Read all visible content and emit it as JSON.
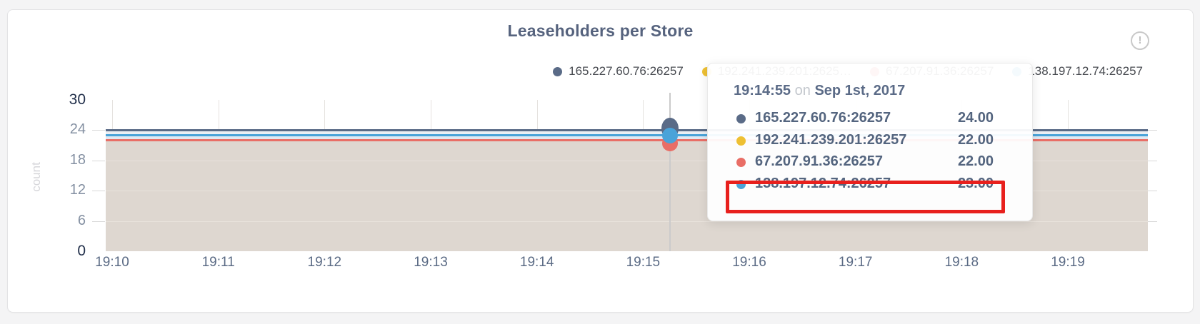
{
  "page": {
    "title": "Leaseholders per Store",
    "info_icon_glyph": "!"
  },
  "legend": {
    "items": [
      {
        "label": "165.227.60.76:26257",
        "color": "#5a6b87"
      },
      {
        "label": "192.241.239.201:2625…",
        "color": "#eec033"
      },
      {
        "label": "67.207.91.36:26257",
        "color": "#e96e66"
      },
      {
        "label": "138.197.12.74:26257",
        "color": "#4aa3d9"
      }
    ]
  },
  "axes": {
    "ylabel": "count",
    "y_ticks": [
      0,
      6,
      12,
      18,
      24,
      30
    ],
    "y_maxmin": [
      0,
      30
    ],
    "x_ticks": [
      "19:10",
      "19:11",
      "19:12",
      "19:13",
      "19:14",
      "19:15",
      "19:16",
      "19:17",
      "19:18",
      "19:19"
    ]
  },
  "chart_data": {
    "type": "line",
    "title": "Leaseholders per Store",
    "xlabel": "",
    "ylabel": "count",
    "x": [
      "19:10",
      "19:11",
      "19:12",
      "19:13",
      "19:14",
      "19:15",
      "19:16",
      "19:17",
      "19:18",
      "19:19"
    ],
    "ylim": [
      0,
      30
    ],
    "y_ticks": [
      0,
      6,
      12,
      18,
      24,
      30
    ],
    "grid": true,
    "legend_position": "top-right",
    "series": [
      {
        "name": "165.227.60.76:26257",
        "color": "#5a6b87",
        "values": [
          24,
          24,
          24,
          24,
          24,
          24,
          24,
          24,
          24,
          24
        ]
      },
      {
        "name": "192.241.239.201:26257",
        "color": "#eec033",
        "values": [
          22,
          22,
          22,
          22,
          22,
          22,
          22,
          22,
          22,
          22
        ]
      },
      {
        "name": "67.207.91.36:26257",
        "color": "#e96e66",
        "values": [
          22,
          22,
          22,
          22,
          22,
          22,
          22,
          22,
          22,
          22
        ]
      },
      {
        "name": "138.197.12.74:26257",
        "color": "#4aa3d9",
        "values": [
          23,
          23,
          23,
          23,
          23,
          23,
          23,
          23,
          23,
          23
        ]
      }
    ],
    "fill_bands": [
      {
        "from": 24,
        "to": 23,
        "color": "#eceff4"
      },
      {
        "from": 23,
        "to": 22,
        "color": "#e0e9f3"
      },
      {
        "from": 22,
        "to": 0,
        "color": "#ded7d0"
      }
    ],
    "hover": {
      "time": "19:14:55",
      "date": "Sep 1st, 2017",
      "values": [
        24,
        22,
        22,
        23
      ]
    }
  },
  "tooltip": {
    "time": "19:14:55",
    "connector": "on",
    "date": "Sep 1st, 2017",
    "rows": [
      {
        "name": "165.227.60.76:26257",
        "value": "24.00",
        "color": "#5a6b87",
        "highlighted": false
      },
      {
        "name": "192.241.239.201:26257",
        "value": "22.00",
        "color": "#eec033",
        "highlighted": false
      },
      {
        "name": "67.207.91.36:26257",
        "value": "22.00",
        "color": "#e96e66",
        "highlighted": false
      },
      {
        "name": "138.197.12.74:26257",
        "value": "23.00",
        "color": "#4aa3d9",
        "highlighted": true
      }
    ]
  },
  "colors": {
    "card_bg": "#ffffff",
    "card_border": "#e3e3e5",
    "page_bg": "#f4f4f5",
    "title": "#56637e",
    "tan_fill": "#ded7d0",
    "highlight_red": "#e8201d",
    "hover_line": "#cbcbcb",
    "gridline": "#e5e2df",
    "tick_dark": "#22304b",
    "tick_mid": "#8490a2",
    "xtick": "#5b6b85"
  }
}
